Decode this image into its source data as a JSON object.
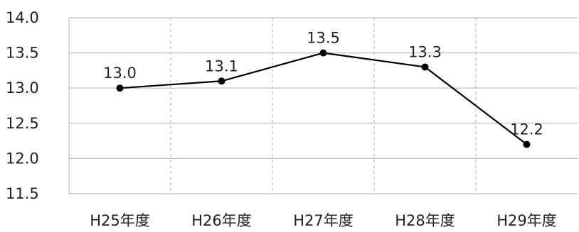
{
  "chart_data": {
    "type": "line",
    "categories": [
      "H25年度",
      "H26年度",
      "H27年度",
      "H28年度",
      "H29年度"
    ],
    "series": [
      {
        "values": [
          13.0,
          13.1,
          13.5,
          13.3,
          12.2
        ]
      }
    ],
    "ylim": [
      11.5,
      14.0
    ],
    "yticks": [
      "11.5",
      "12.0",
      "12.5",
      "13.0",
      "13.5",
      "14.0"
    ],
    "data_labels": [
      "13.0",
      "13.1",
      "13.5",
      "13.3",
      "12.2"
    ],
    "grid": {
      "horizontal": "solid",
      "vertical": "dashed"
    },
    "colors": {
      "line": "#000000",
      "grid": "#bdbdbd",
      "text": "#222222"
    }
  }
}
